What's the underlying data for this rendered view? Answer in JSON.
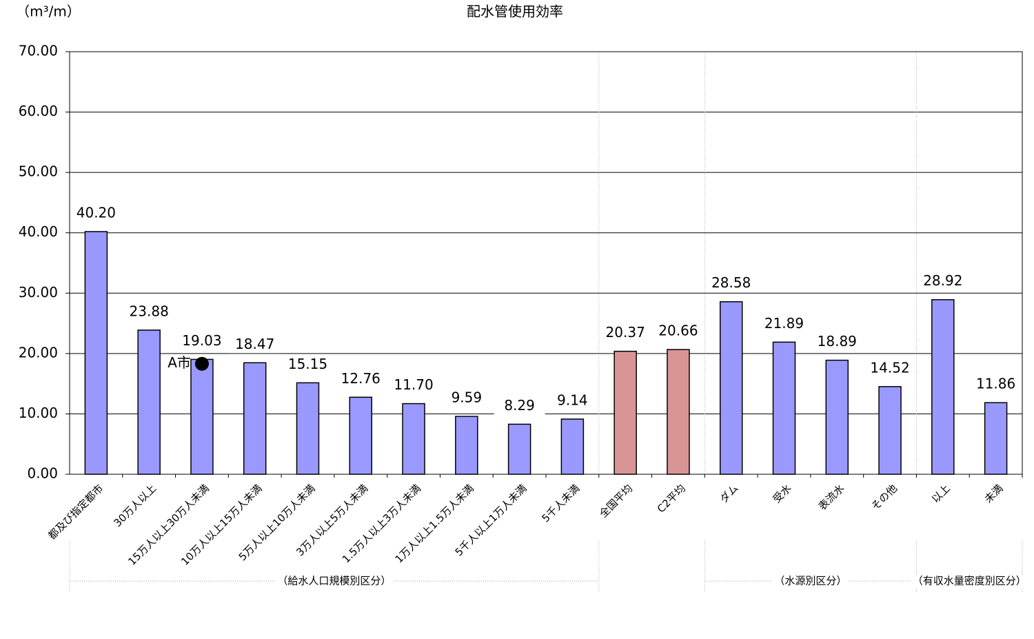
{
  "chart_data": {
    "type": "bar",
    "title": "配水管使用効率",
    "y_unit": "（m³/m）",
    "categories": [
      "都及び指定都市",
      "30万人以上",
      "15万人以上30万人未満",
      "10万人以上15万人未満",
      "5万人以上10万人未満",
      "3万人以上5万人未満",
      "1.5万人以上3万人未満",
      "1万人以上1.5万人未満",
      "5千人以上1万人未満",
      "5千人未満",
      "全国平均",
      "C2平均",
      "ダム",
      "受水",
      "表流水",
      "その他",
      "以上",
      "未満"
    ],
    "values": [
      40.2,
      23.88,
      19.03,
      18.47,
      15.15,
      12.76,
      11.7,
      9.59,
      8.29,
      9.14,
      20.37,
      20.66,
      28.58,
      21.89,
      18.89,
      14.52,
      28.92,
      11.86
    ],
    "value_labels": [
      "40.20",
      "23.88",
      "19.03",
      "18.47",
      "15.15",
      "12.76",
      "11.70",
      "9.59",
      "8.29",
      "9.14",
      "20.37",
      "20.66",
      "28.58",
      "21.89",
      "18.89",
      "14.52",
      "28.92",
      "11.86"
    ],
    "colors": [
      "#9999ff",
      "#9999ff",
      "#9999ff",
      "#9999ff",
      "#9999ff",
      "#9999ff",
      "#9999ff",
      "#9999ff",
      "#9999ff",
      "#9999ff",
      "#d99594",
      "#d99594",
      "#9999ff",
      "#9999ff",
      "#9999ff",
      "#9999ff",
      "#9999ff",
      "#9999ff"
    ],
    "ylim": [
      0,
      70
    ],
    "yticks": [
      {
        "value": 0,
        "label": "0.00"
      },
      {
        "value": 10,
        "label": "10.00"
      },
      {
        "value": 20,
        "label": "20.00"
      },
      {
        "value": 30,
        "label": "30.00"
      },
      {
        "value": 40,
        "label": "40.00"
      },
      {
        "value": 50,
        "label": "50.00"
      },
      {
        "value": 60,
        "label": "60.00"
      },
      {
        "value": 70,
        "label": "70.00"
      }
    ],
    "grid": true,
    "marker": {
      "label": "A市",
      "category": "15万人以上30万人未満",
      "value": 18.3
    },
    "groups": [
      "（給水人口規模別区分）",
      "（水源別区分）",
      "（有収水量密度別区分）"
    ]
  }
}
